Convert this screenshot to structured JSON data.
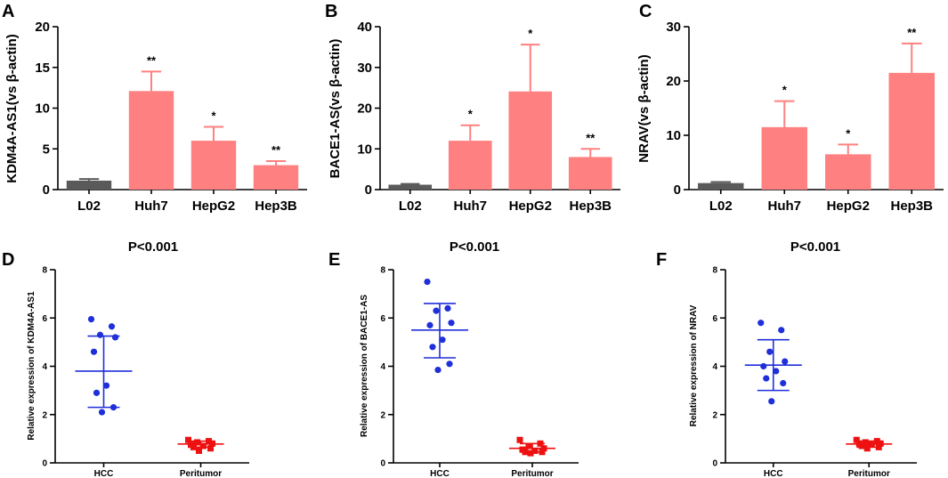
{
  "colors": {
    "bar_control": "#5a5a5a",
    "bar_cell": "#ff8080",
    "hcc_points": "#1f2fd9",
    "peritumor_points": "#ee1111",
    "axis": "#000000"
  },
  "chart_data": [
    {
      "panel": "A",
      "type": "bar",
      "ylabel": "KDM4A-AS1(vs β-actin)",
      "ylim": [
        0,
        20
      ],
      "yticks": [
        0,
        5,
        10,
        15,
        20
      ],
      "categories": [
        "L02",
        "Huh7",
        "HepG2",
        "Hep3B"
      ],
      "values": [
        1.1,
        12.1,
        6.0,
        3.0
      ],
      "errors": [
        0.2,
        2.4,
        1.7,
        0.5
      ],
      "significance": [
        "",
        "**",
        "*",
        "**"
      ]
    },
    {
      "panel": "B",
      "type": "bar",
      "ylabel": "BACE1-AS(vs β-actin)",
      "ylim": [
        0,
        40
      ],
      "yticks": [
        0,
        10,
        20,
        30,
        40
      ],
      "categories": [
        "L02",
        "Huh7",
        "HepG2",
        "Hep3B"
      ],
      "values": [
        1.2,
        12.0,
        24.1,
        8.0
      ],
      "errors": [
        0.2,
        3.8,
        11.5,
        2.0
      ],
      "significance": [
        "",
        "*",
        "*",
        "**"
      ]
    },
    {
      "panel": "C",
      "type": "bar",
      "ylabel": "NRAV(vs β-actin)",
      "ylim": [
        0,
        30
      ],
      "yticks": [
        0,
        10,
        20,
        30
      ],
      "categories": [
        "L02",
        "Huh7",
        "HepG2",
        "Hep3B"
      ],
      "values": [
        1.2,
        11.5,
        6.5,
        21.5
      ],
      "errors": [
        0.2,
        4.8,
        1.8,
        5.4
      ],
      "significance": [
        "",
        "*",
        "*",
        "**"
      ]
    },
    {
      "panel": "D",
      "type": "scatter",
      "title": "P<0.001",
      "ylabel": "Relative expression of KDM4A-AS1",
      "ylim": [
        0,
        8
      ],
      "yticks": [
        0,
        2,
        4,
        6,
        8
      ],
      "categories": [
        "HCC",
        "Peritumor"
      ],
      "series": [
        {
          "name": "HCC",
          "marker": "circle",
          "mean": 3.8,
          "sd_low": 2.3,
          "sd_high": 5.25,
          "points": [
            5.95,
            5.65,
            5.3,
            5.2,
            4.6,
            3.2,
            2.9,
            2.3,
            2.1
          ]
        },
        {
          "name": "Peritumor",
          "marker": "square",
          "mean": 0.78,
          "sd_low": 0.65,
          "sd_high": 0.9,
          "points": [
            0.95,
            0.9,
            0.85,
            0.8,
            0.75,
            0.7,
            0.65,
            0.6,
            0.5
          ]
        }
      ]
    },
    {
      "panel": "E",
      "type": "scatter",
      "title": "P<0.001",
      "ylabel": "Relative expression of BACE1-AS",
      "ylim": [
        0,
        8
      ],
      "yticks": [
        0,
        2,
        4,
        6,
        8
      ],
      "categories": [
        "HCC",
        "Peritumor"
      ],
      "series": [
        {
          "name": "HCC",
          "marker": "circle",
          "mean": 5.5,
          "sd_low": 4.35,
          "sd_high": 6.6,
          "points": [
            7.5,
            6.4,
            6.3,
            5.8,
            5.7,
            5.1,
            4.8,
            4.1,
            3.85
          ]
        },
        {
          "name": "Peritumor",
          "marker": "square",
          "mean": 0.6,
          "sd_low": 0.45,
          "sd_high": 0.8,
          "points": [
            0.95,
            0.8,
            0.7,
            0.6,
            0.55,
            0.5,
            0.45,
            0.45,
            0.4
          ]
        }
      ]
    },
    {
      "panel": "F",
      "type": "scatter",
      "title": "P<0.001",
      "ylabel": "Relative expression of NRAV",
      "ylim": [
        0,
        8
      ],
      "yticks": [
        0,
        2,
        4,
        6,
        8
      ],
      "categories": [
        "HCC",
        "Peritumor"
      ],
      "series": [
        {
          "name": "HCC",
          "marker": "circle",
          "mean": 4.05,
          "sd_low": 3.0,
          "sd_high": 5.1,
          "points": [
            5.8,
            5.5,
            4.6,
            4.2,
            4.0,
            3.8,
            3.5,
            3.3,
            2.55
          ]
        },
        {
          "name": "Peritumor",
          "marker": "square",
          "mean": 0.78,
          "sd_low": 0.65,
          "sd_high": 0.9,
          "points": [
            0.95,
            0.9,
            0.85,
            0.8,
            0.8,
            0.75,
            0.7,
            0.65,
            0.6
          ]
        }
      ]
    }
  ]
}
